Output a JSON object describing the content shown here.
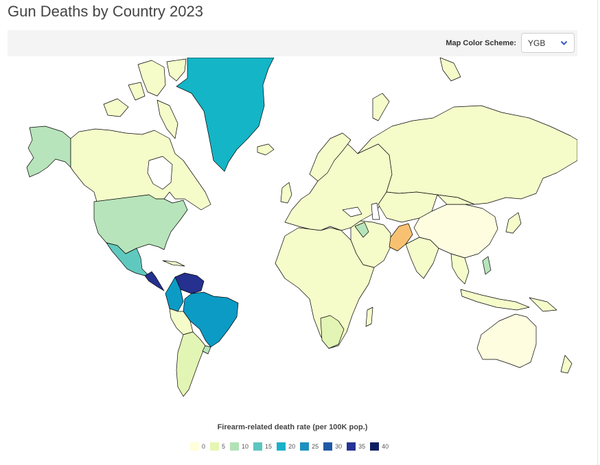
{
  "page": {
    "title": "Gun Deaths by Country 2023"
  },
  "toolbar": {
    "scheme_label": "Map Color Scheme:",
    "scheme_value": "YGB",
    "scheme_icon": "chevron-down-icon",
    "chevron_color": "#3d5fc4"
  },
  "legend": {
    "title": "Firearm-related death rate (per 100K pop.)",
    "items": [
      {
        "label": "0",
        "color": "#ffffd9"
      },
      {
        "label": "5",
        "color": "#e6f6b2"
      },
      {
        "label": "10",
        "color": "#b3e1b6"
      },
      {
        "label": "15",
        "color": "#5cc5bf"
      },
      {
        "label": "20",
        "color": "#1cb0c9"
      },
      {
        "label": "25",
        "color": "#1d91c0"
      },
      {
        "label": "30",
        "color": "#1f59a6"
      },
      {
        "label": "35",
        "color": "#253494"
      },
      {
        "label": "40",
        "color": "#0b1f5f"
      }
    ]
  },
  "map_colors": {
    "low": "#f5fcca",
    "very_low": "#fffde0",
    "pale_green": "#e3f5b4",
    "light_green": "#b7e4ba",
    "teal": "#60c9bf",
    "cyan": "#13b5c6",
    "blue": "#0b9bc5",
    "navy": "#25308f",
    "orange": "#f8c172"
  }
}
